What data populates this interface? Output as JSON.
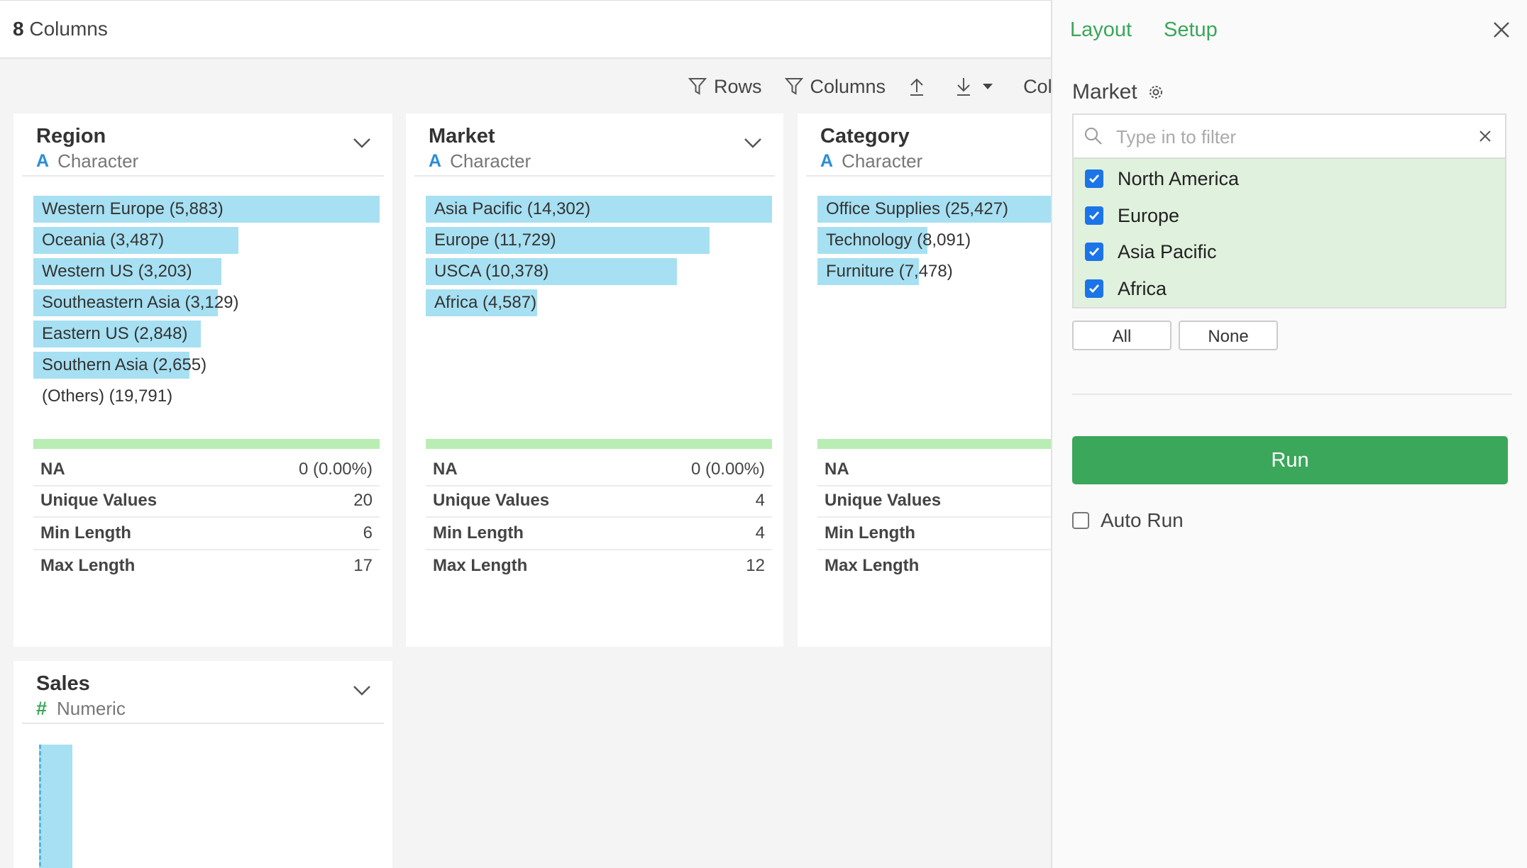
{
  "header": {
    "count": "8",
    "count_label": "Columns"
  },
  "toolbar": {
    "rows": "Rows",
    "columns": "Columns",
    "cut": "Colur"
  },
  "cards": {
    "region": {
      "name": "Region",
      "type": "Character",
      "bars": [
        {
          "label": "Western Europe (5,883)",
          "frac": 1.0
        },
        {
          "label": "Oceania (3,487)",
          "frac": 0.593
        },
        {
          "label": "Western US (3,203)",
          "frac": 0.544
        },
        {
          "label": "Southeastern Asia (3,129)",
          "frac": 0.532
        },
        {
          "label": "Eastern US (2,848)",
          "frac": 0.484
        },
        {
          "label": "Southern Asia (2,655)",
          "frac": 0.451
        },
        {
          "label": "(Others) (19,791)",
          "frac": 0
        }
      ],
      "stats": {
        "na_k": "NA",
        "na_v": "0 (0.00%)",
        "uv_k": "Unique Values",
        "uv_v": "20",
        "min_k": "Min Length",
        "min_v": "6",
        "max_k": "Max Length",
        "max_v": "17"
      }
    },
    "market": {
      "name": "Market",
      "type": "Character",
      "bars": [
        {
          "label": "Asia Pacific (14,302)",
          "frac": 1.0
        },
        {
          "label": "Europe (11,729)",
          "frac": 0.82
        },
        {
          "label": "USCA (10,378)",
          "frac": 0.726
        },
        {
          "label": "Africa (4,587)",
          "frac": 0.321
        }
      ],
      "stats": {
        "na_k": "NA",
        "na_v": "0 (0.00%)",
        "uv_k": "Unique Values",
        "uv_v": "4",
        "min_k": "Min Length",
        "min_v": "4",
        "max_k": "Max Length",
        "max_v": "12"
      }
    },
    "category": {
      "name": "Category",
      "type": "Character",
      "bars": [
        {
          "label": "Office Supplies (25,427)",
          "frac": 1.0
        },
        {
          "label": "Technology (8,091)",
          "frac": 0.318
        },
        {
          "label": "Furniture (7,478)",
          "frac": 0.294
        }
      ],
      "stats": {
        "na_k": "NA",
        "uv_k": "Unique Values",
        "min_k": "Min Length",
        "max_k": "Max Length"
      }
    },
    "sales": {
      "name": "Sales",
      "type": "Numeric"
    }
  },
  "panel": {
    "tab_layout": "Layout",
    "tab_setup": "Setup",
    "field_label": "Market",
    "filter_placeholder": "Type in to filter",
    "options": [
      "North America",
      "Europe",
      "Asia Pacific",
      "Africa"
    ],
    "btn_all": "All",
    "btn_none": "None",
    "run": "Run",
    "auto_run": "Auto Run",
    "accent": "#3aa75a",
    "checkbox_color": "#1b74e8"
  }
}
